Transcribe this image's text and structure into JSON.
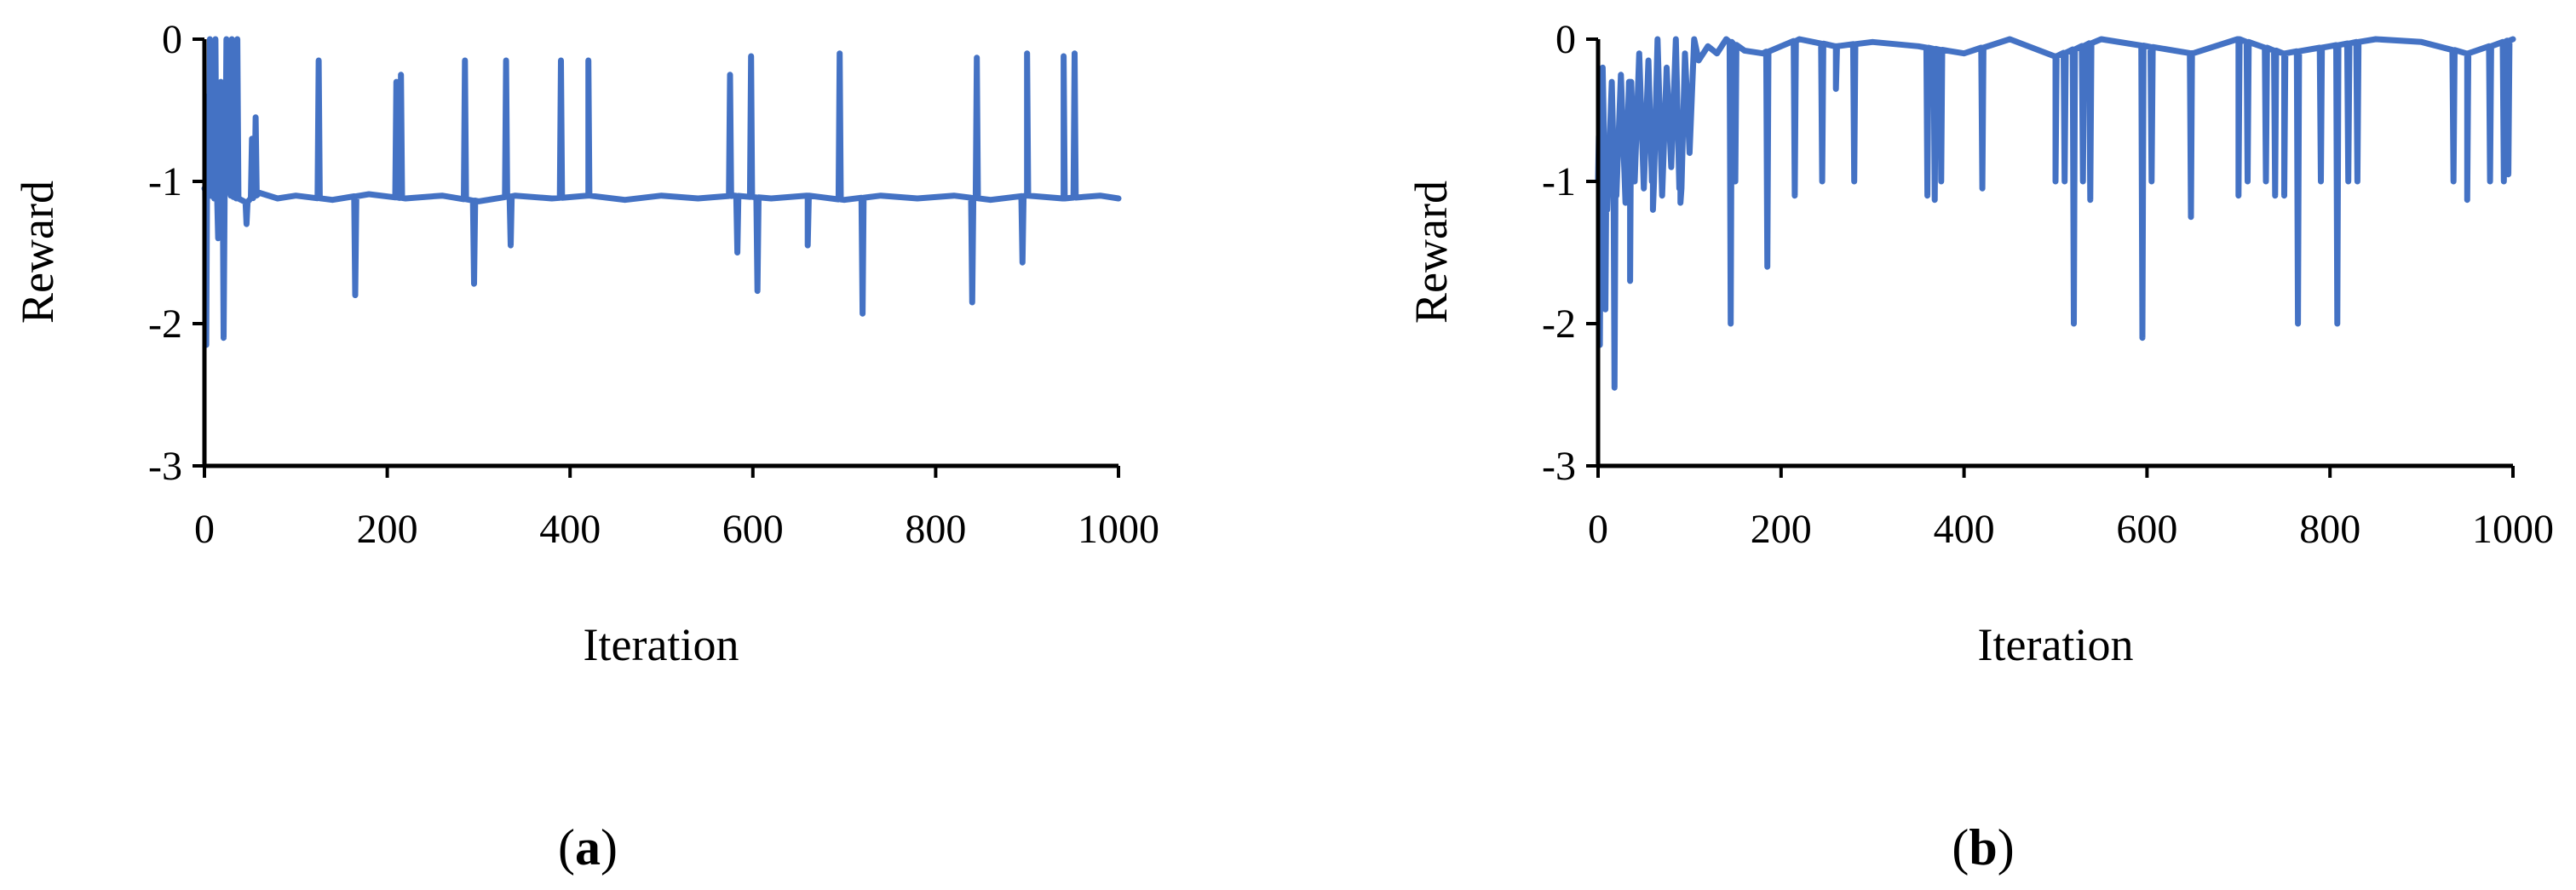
{
  "figure": {
    "captions": [
      {
        "open": "(",
        "letter": "a",
        "close": ")"
      },
      {
        "open": "(",
        "letter": "b",
        "close": ")"
      }
    ]
  },
  "chart_data": [
    {
      "type": "line",
      "title": "",
      "xlabel": "Iteration",
      "ylabel": "Reward",
      "xlim": [
        0,
        1000
      ],
      "ylim": [
        -3,
        0
      ],
      "xticks": [
        0,
        200,
        400,
        600,
        800,
        1000
      ],
      "yticks": [
        0,
        -1,
        -2,
        -3
      ],
      "grid": false,
      "legend": "none",
      "color": "#4472C4",
      "series": [
        {
          "baseline": [
            [
              0,
              -1.05
            ],
            [
              12,
              -1.12
            ],
            [
              20,
              -1.02
            ],
            [
              30,
              -1.1
            ],
            [
              45,
              -1.15
            ],
            [
              60,
              -1.08
            ],
            [
              80,
              -1.12
            ],
            [
              100,
              -1.1
            ],
            [
              140,
              -1.13
            ],
            [
              180,
              -1.09
            ],
            [
              220,
              -1.12
            ],
            [
              260,
              -1.1
            ],
            [
              300,
              -1.14
            ],
            [
              340,
              -1.1
            ],
            [
              380,
              -1.12
            ],
            [
              420,
              -1.1
            ],
            [
              460,
              -1.13
            ],
            [
              500,
              -1.1
            ],
            [
              540,
              -1.12
            ],
            [
              580,
              -1.1
            ],
            [
              620,
              -1.12
            ],
            [
              660,
              -1.1
            ],
            [
              700,
              -1.13
            ],
            [
              740,
              -1.1
            ],
            [
              780,
              -1.12
            ],
            [
              820,
              -1.1
            ],
            [
              860,
              -1.13
            ],
            [
              900,
              -1.1
            ],
            [
              940,
              -1.12
            ],
            [
              980,
              -1.1
            ],
            [
              1000,
              -1.12
            ]
          ],
          "spikes": [
            [
              2,
              -2.15
            ],
            [
              4,
              -0.4
            ],
            [
              6,
              0
            ],
            [
              9,
              -0.8
            ],
            [
              12,
              0
            ],
            [
              15,
              -1.4
            ],
            [
              18,
              -0.3
            ],
            [
              21,
              -2.1
            ],
            [
              24,
              0
            ],
            [
              27,
              -0.3
            ],
            [
              30,
              0
            ],
            [
              33,
              -0.5
            ],
            [
              36,
              0
            ],
            [
              46,
              -1.3
            ],
            [
              52,
              -0.7
            ],
            [
              56,
              -0.55
            ],
            [
              125,
              -0.15
            ],
            [
              165,
              -1.8
            ],
            [
              210,
              -0.3
            ],
            [
              215,
              -0.25
            ],
            [
              285,
              -0.15
            ],
            [
              295,
              -1.72
            ],
            [
              330,
              -0.15
            ],
            [
              335,
              -1.45
            ],
            [
              390,
              -0.15
            ],
            [
              420,
              -0.15
            ],
            [
              575,
              -0.25
            ],
            [
              583,
              -1.5
            ],
            [
              598,
              -0.12
            ],
            [
              605,
              -1.77
            ],
            [
              660,
              -1.45
            ],
            [
              695,
              -0.1
            ],
            [
              720,
              -1.93
            ],
            [
              840,
              -1.85
            ],
            [
              845,
              -0.13
            ],
            [
              895,
              -1.57
            ],
            [
              900,
              -0.1
            ],
            [
              940,
              -0.12
            ],
            [
              952,
              -0.1
            ]
          ]
        }
      ]
    },
    {
      "type": "line",
      "title": "",
      "xlabel": "Iteration",
      "ylabel": "Reward",
      "xlim": [
        0,
        1000
      ],
      "ylim": [
        -3,
        0
      ],
      "xticks": [
        0,
        200,
        400,
        600,
        800,
        1000
      ],
      "yticks": [
        0,
        -1,
        -2,
        -3
      ],
      "grid": false,
      "legend": "none",
      "color": "#4472C4",
      "series": [
        {
          "baseline": [
            [
              0,
              -1.0
            ],
            [
              5,
              -0.2
            ],
            [
              10,
              -1.2
            ],
            [
              15,
              -0.3
            ],
            [
              20,
              -1.1
            ],
            [
              25,
              -0.25
            ],
            [
              30,
              -1.15
            ],
            [
              35,
              -0.3
            ],
            [
              40,
              -1.0
            ],
            [
              45,
              -0.1
            ],
            [
              50,
              -1.05
            ],
            [
              55,
              -0.15
            ],
            [
              60,
              -1.0
            ],
            [
              65,
              0
            ],
            [
              70,
              -1.1
            ],
            [
              75,
              -0.2
            ],
            [
              80,
              -0.9
            ],
            [
              85,
              0
            ],
            [
              90,
              -1.05
            ],
            [
              95,
              -0.1
            ],
            [
              100,
              -0.8
            ],
            [
              105,
              0
            ],
            [
              110,
              -0.15
            ],
            [
              120,
              -0.05
            ],
            [
              130,
              -0.1
            ],
            [
              140,
              0
            ],
            [
              160,
              -0.08
            ],
            [
              180,
              -0.1
            ],
            [
              200,
              -0.05
            ],
            [
              220,
              0
            ],
            [
              260,
              -0.05
            ],
            [
              300,
              -0.02
            ],
            [
              350,
              -0.05
            ],
            [
              400,
              -0.1
            ],
            [
              450,
              0
            ],
            [
              500,
              -0.12
            ],
            [
              550,
              0
            ],
            [
              600,
              -0.05
            ],
            [
              650,
              -0.1
            ],
            [
              700,
              0
            ],
            [
              750,
              -0.1
            ],
            [
              800,
              -0.05
            ],
            [
              850,
              0
            ],
            [
              900,
              -0.02
            ],
            [
              950,
              -0.1
            ],
            [
              1000,
              0
            ]
          ],
          "spikes": [
            [
              2,
              -2.15
            ],
            [
              8,
              -1.9
            ],
            [
              18,
              -2.45
            ],
            [
              35,
              -1.7
            ],
            [
              60,
              -1.2
            ],
            [
              90,
              -1.15
            ],
            [
              145,
              -2.0
            ],
            [
              150,
              -1.0
            ],
            [
              185,
              -1.6
            ],
            [
              215,
              -1.1
            ],
            [
              245,
              -1.0
            ],
            [
              260,
              -0.35
            ],
            [
              280,
              -1.0
            ],
            [
              360,
              -1.1
            ],
            [
              368,
              -1.13
            ],
            [
              375,
              -1.0
            ],
            [
              420,
              -1.05
            ],
            [
              500,
              -1.0
            ],
            [
              510,
              -1.0
            ],
            [
              520,
              -2.0
            ],
            [
              530,
              -1.0
            ],
            [
              538,
              -1.13
            ],
            [
              595,
              -2.1
            ],
            [
              605,
              -1.0
            ],
            [
              648,
              -1.25
            ],
            [
              700,
              -1.1
            ],
            [
              710,
              -1.0
            ],
            [
              730,
              -1.0
            ],
            [
              740,
              -1.1
            ],
            [
              750,
              -1.1
            ],
            [
              765,
              -2.0
            ],
            [
              790,
              -1.0
            ],
            [
              808,
              -2.0
            ],
            [
              820,
              -1.0
            ],
            [
              830,
              -1.0
            ],
            [
              935,
              -1.0
            ],
            [
              950,
              -1.13
            ],
            [
              975,
              -1.0
            ],
            [
              990,
              -1.0
            ],
            [
              995,
              -0.95
            ]
          ]
        }
      ]
    }
  ]
}
